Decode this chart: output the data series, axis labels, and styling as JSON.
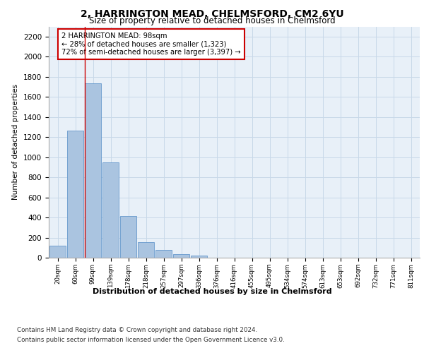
{
  "title": "2, HARRINGTON MEAD, CHELMSFORD, CM2 6YU",
  "subtitle": "Size of property relative to detached houses in Chelmsford",
  "xlabel": "Distribution of detached houses by size in Chelmsford",
  "ylabel": "Number of detached properties",
  "categories": [
    "20sqm",
    "60sqm",
    "99sqm",
    "139sqm",
    "178sqm",
    "218sqm",
    "257sqm",
    "297sqm",
    "336sqm",
    "376sqm",
    "416sqm",
    "455sqm",
    "495sqm",
    "534sqm",
    "574sqm",
    "613sqm",
    "653sqm",
    "692sqm",
    "732sqm",
    "771sqm",
    "811sqm"
  ],
  "values": [
    120,
    1265,
    1735,
    950,
    415,
    155,
    75,
    35,
    20,
    0,
    0,
    0,
    0,
    0,
    0,
    0,
    0,
    0,
    0,
    0,
    0
  ],
  "bar_color": "#aac4e0",
  "bar_edge_color": "#6699cc",
  "highlight_line_index": 2,
  "highlight_line_color": "#cc0000",
  "annotation_text": "2 HARRINGTON MEAD: 98sqm\n← 28% of detached houses are smaller (1,323)\n72% of semi-detached houses are larger (3,397) →",
  "annotation_box_color": "#ffffff",
  "annotation_box_edge_color": "#cc0000",
  "ylim": [
    0,
    2300
  ],
  "yticks": [
    0,
    200,
    400,
    600,
    800,
    1000,
    1200,
    1400,
    1600,
    1800,
    2000,
    2200
  ],
  "grid_color": "#c8d8e8",
  "background_color": "#e8f0f8",
  "footer_line1": "Contains HM Land Registry data © Crown copyright and database right 2024.",
  "footer_line2": "Contains public sector information licensed under the Open Government Licence v3.0."
}
